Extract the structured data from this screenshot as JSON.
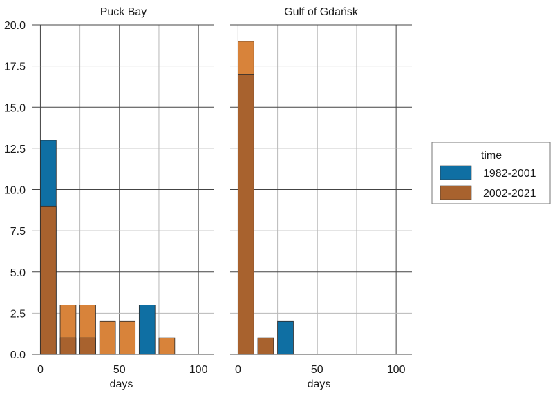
{
  "chart_data": {
    "type": "bar",
    "xlabel": "days",
    "ylim": [
      0,
      20
    ],
    "yticks": [
      "0.0",
      "2.5",
      "5.0",
      "7.5",
      "10.0",
      "12.5",
      "15.0",
      "17.5",
      "20.0"
    ],
    "xticks": [
      "0",
      "50",
      "100"
    ],
    "xlim": [
      -5,
      110
    ],
    "bin_width": 10,
    "grid": true,
    "legend": {
      "title": "time",
      "placement": "right",
      "entries": [
        {
          "label": "1982-2001",
          "color": "#0F6FA3"
        },
        {
          "label": "2002-2021",
          "color": "#D8833A"
        }
      ]
    },
    "overlap_color": "#A8622E",
    "panels": [
      {
        "title": "Puck Bay",
        "bins": [
          0,
          12.5,
          25,
          37.5,
          50,
          62.5,
          75
        ],
        "series": [
          {
            "name": "1982-2001",
            "values": [
              13,
              1,
              1,
              0,
              0,
              3,
              0
            ]
          },
          {
            "name": "2002-2021",
            "values": [
              9,
              3,
              3,
              2,
              2,
              0,
              1
            ]
          }
        ]
      },
      {
        "title": "Gulf of Gdańsk",
        "bins": [
          0,
          12.5,
          25
        ],
        "series": [
          {
            "name": "1982-2001",
            "values": [
              17,
              1,
              2
            ]
          },
          {
            "name": "2002-2021",
            "values": [
              19,
              1,
              0
            ]
          }
        ]
      }
    ]
  }
}
